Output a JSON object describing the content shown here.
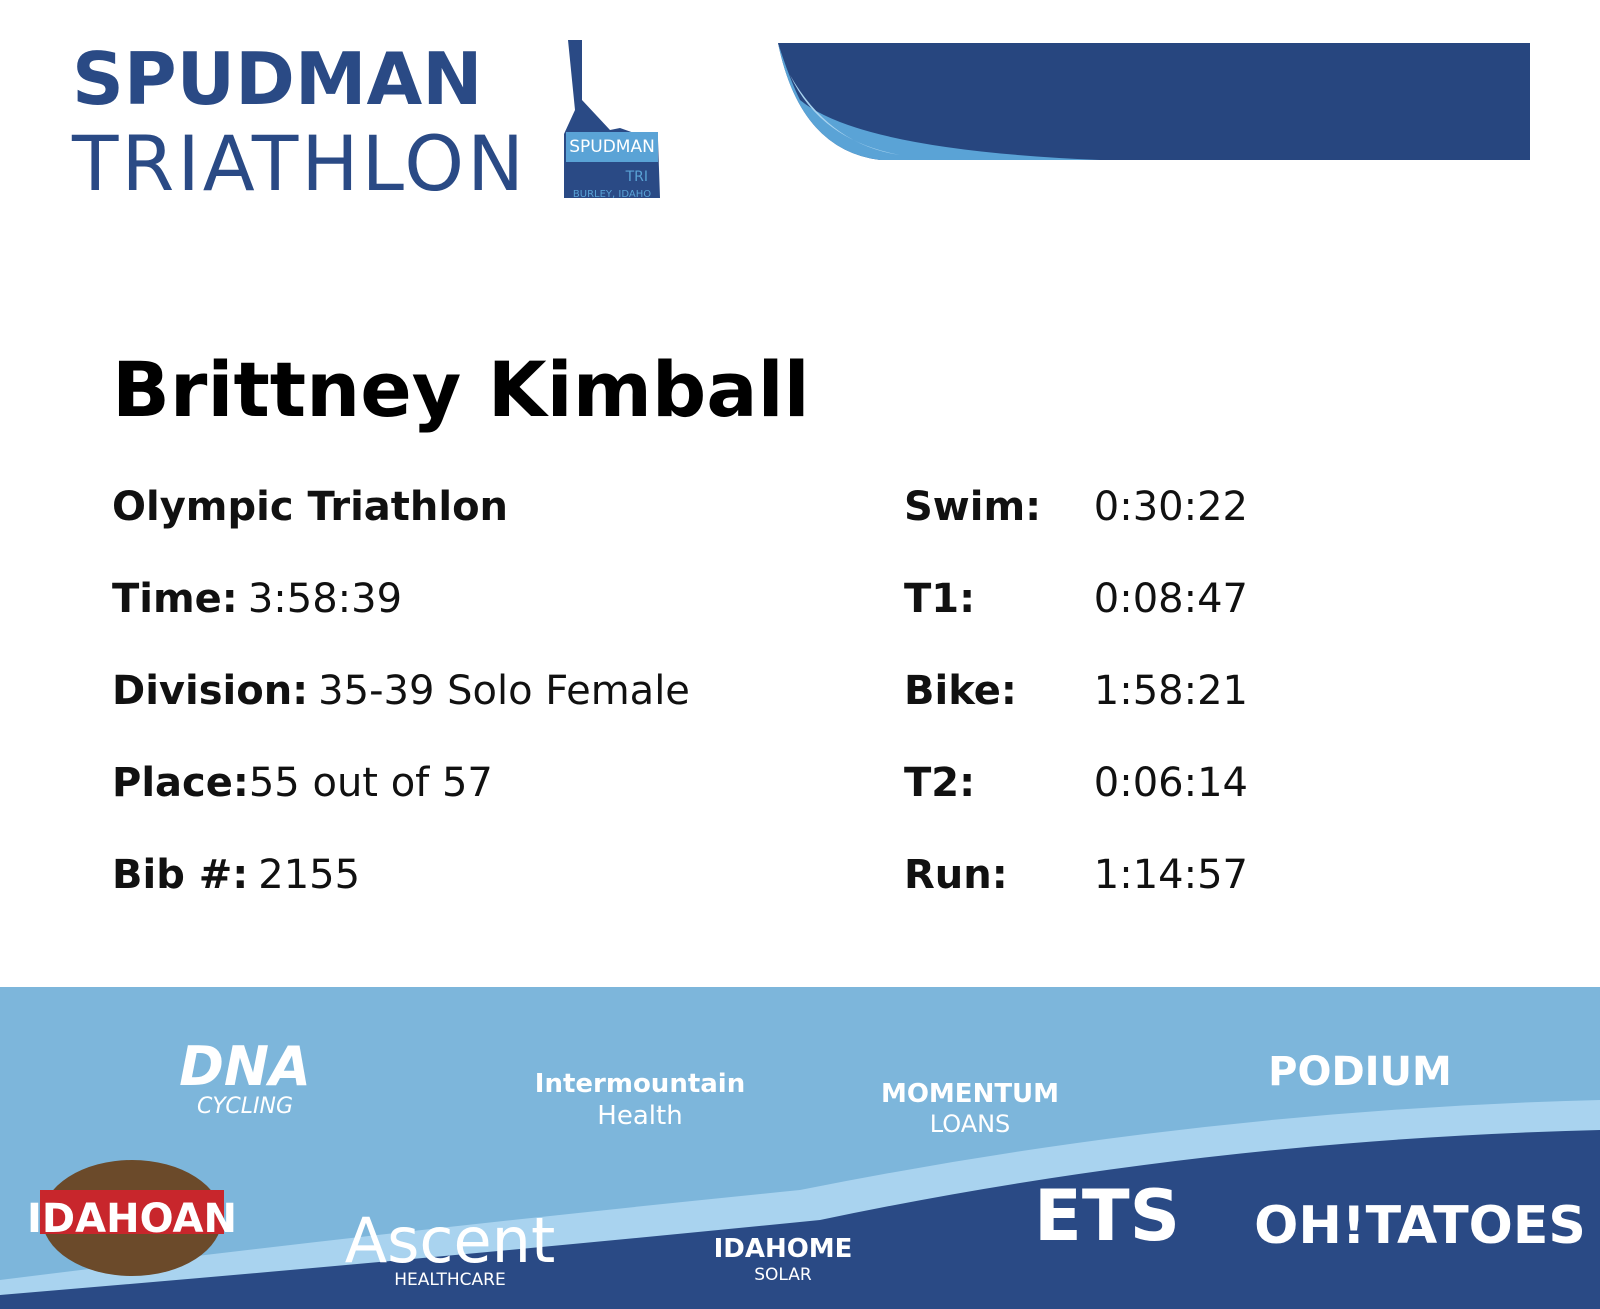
{
  "header": {
    "logo_line1": "SPUDMAN",
    "logo_line2": "TRIATHLON",
    "badge": {
      "name": "SPUDMAN",
      "tag": "TRI",
      "place": "BURLEY, IDAHO"
    }
  },
  "athlete": {
    "name": "Brittney Kimball",
    "race": "Olympic Triathlon",
    "details": [
      {
        "label": "Time:",
        "value": "3:58:39"
      },
      {
        "label": "Division:",
        "value": "35-39 Solo Female"
      },
      {
        "label": "Place:",
        "value": "55 out of 57"
      },
      {
        "label": "Bib #:",
        "value": "2155"
      }
    ],
    "splits": [
      {
        "label": "Swim:",
        "value": "0:30:22"
      },
      {
        "label": "T1:",
        "value": "0:08:47"
      },
      {
        "label": "Bike:",
        "value": "1:58:21"
      },
      {
        "label": "T2:",
        "value": "0:06:14"
      },
      {
        "label": "Run:",
        "value": "1:14:57"
      }
    ]
  },
  "sponsors": [
    [
      "DNA",
      "CYCLING"
    ],
    [
      "Intermountain",
      "Health"
    ],
    [
      "MOMENTUM",
      "LOANS"
    ],
    [
      "PODIUM"
    ],
    [
      "IDAHOAN"
    ],
    [
      "Ascent",
      "HEALTHCARE"
    ],
    [
      "IDAHOME",
      "SOLAR"
    ],
    [
      "ETS"
    ],
    [
      "OH!TATOES"
    ]
  ]
}
